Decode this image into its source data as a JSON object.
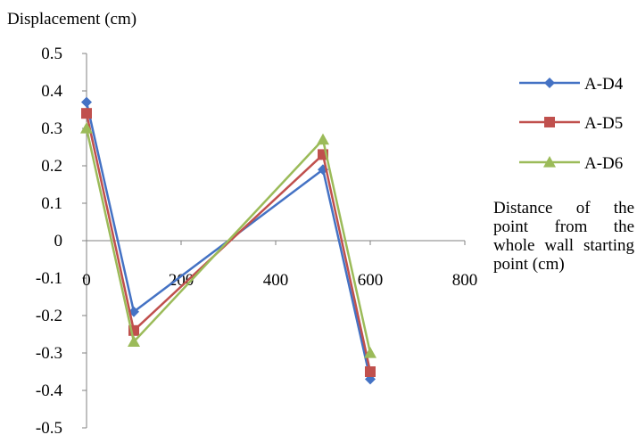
{
  "chart_data": {
    "type": "line",
    "ylabel": "Displacement (cm)",
    "xlabel": "Distance of the point from the whole wall starting point (cm)",
    "xlim": [
      0,
      800
    ],
    "ylim": [
      -0.5,
      0.5
    ],
    "x_ticks": [
      "0",
      "200",
      "400",
      "600",
      "800"
    ],
    "y_ticks": [
      "0.5",
      "0.4",
      "0.3",
      "0.2",
      "0.1",
      "0",
      "-0.1",
      "-0.2",
      "-0.3",
      "-0.4",
      "-0.5"
    ],
    "grid": false,
    "legend_position": "right",
    "series": [
      {
        "name": "A-D4",
        "color": "#4472C4",
        "marker": "diamond",
        "x": [
          0,
          100,
          500,
          600
        ],
        "y": [
          0.37,
          -0.19,
          0.19,
          -0.37
        ]
      },
      {
        "name": "A-D5",
        "color": "#C0504D",
        "marker": "square",
        "x": [
          0,
          100,
          500,
          600
        ],
        "y": [
          0.34,
          -0.24,
          0.23,
          -0.35
        ]
      },
      {
        "name": "A-D6",
        "color": "#9BBB59",
        "marker": "triangle",
        "x": [
          0,
          100,
          500,
          600
        ],
        "y": [
          0.3,
          -0.27,
          0.27,
          -0.3
        ]
      }
    ]
  }
}
